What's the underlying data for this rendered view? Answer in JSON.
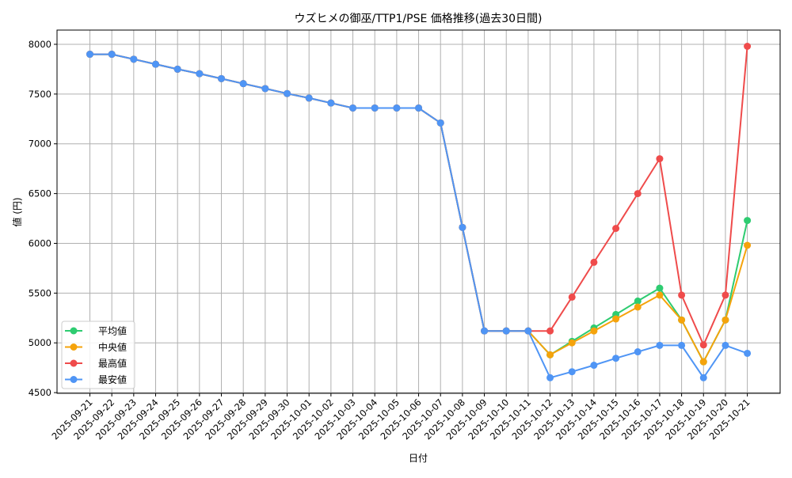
{
  "chart_data": {
    "type": "line",
    "title": "ウズヒメの御巫/TTP1/PSE 価格推移(過去30日間)",
    "xlabel": "日付",
    "ylabel": "値 (円)",
    "ylim": [
      4493,
      8143
    ],
    "yticks": [
      4500,
      5000,
      5500,
      6000,
      6500,
      7000,
      7500,
      8000
    ],
    "grid": true,
    "legend_position": "lower left",
    "categories": [
      "2025-09-21",
      "2025-09-22",
      "2025-09-23",
      "2025-09-24",
      "2025-09-25",
      "2025-09-26",
      "2025-09-27",
      "2025-09-28",
      "2025-09-29",
      "2025-09-30",
      "2025-10-01",
      "2025-10-02",
      "2025-10-03",
      "2025-10-04",
      "2025-10-05",
      "2025-10-06",
      "2025-10-07",
      "2025-10-08",
      "2025-10-09",
      "2025-10-10",
      "2025-10-11",
      "2025-10-12",
      "2025-10-13",
      "2025-10-14",
      "2025-10-15",
      "2025-10-16",
      "2025-10-17",
      "2025-10-18",
      "2025-10-19",
      "2025-10-20",
      "2025-10-21"
    ],
    "series": [
      {
        "name": "平均値",
        "color": "#2ECC71",
        "values": [
          7900,
          7900,
          7850,
          7800,
          7750,
          7705,
          7655,
          7605,
          7555,
          7505,
          7460,
          7410,
          7360,
          7360,
          7360,
          7360,
          7210,
          6160,
          5120,
          5120,
          5120,
          4880,
          5015,
          5150,
          5285,
          5420,
          5550,
          5230,
          4810,
          5230,
          6230
        ]
      },
      {
        "name": "中央値",
        "color": "#F5A30B",
        "values": [
          7900,
          7900,
          7850,
          7800,
          7750,
          7705,
          7655,
          7605,
          7555,
          7505,
          7460,
          7410,
          7360,
          7360,
          7360,
          7360,
          7210,
          6160,
          5120,
          5120,
          5120,
          4880,
          5000,
          5120,
          5240,
          5360,
          5480,
          5230,
          4810,
          5230,
          5980
        ]
      },
      {
        "name": "最高値",
        "color": "#EF4B4B",
        "values": [
          7900,
          7900,
          7850,
          7800,
          7750,
          7705,
          7655,
          7605,
          7555,
          7505,
          7460,
          7410,
          7360,
          7360,
          7360,
          7360,
          7210,
          6160,
          5120,
          5120,
          5120,
          5120,
          5460,
          5810,
          6150,
          6500,
          6850,
          5480,
          4980,
          5480,
          7980
        ]
      },
      {
        "name": "最安値",
        "color": "#4F95F5",
        "values": [
          7900,
          7900,
          7850,
          7800,
          7750,
          7705,
          7655,
          7605,
          7555,
          7505,
          7460,
          7410,
          7360,
          7360,
          7360,
          7360,
          7210,
          6160,
          5120,
          5120,
          5120,
          4650,
          4710,
          4775,
          4845,
          4910,
          4975,
          4975,
          4650,
          4975,
          4895
        ]
      }
    ]
  }
}
